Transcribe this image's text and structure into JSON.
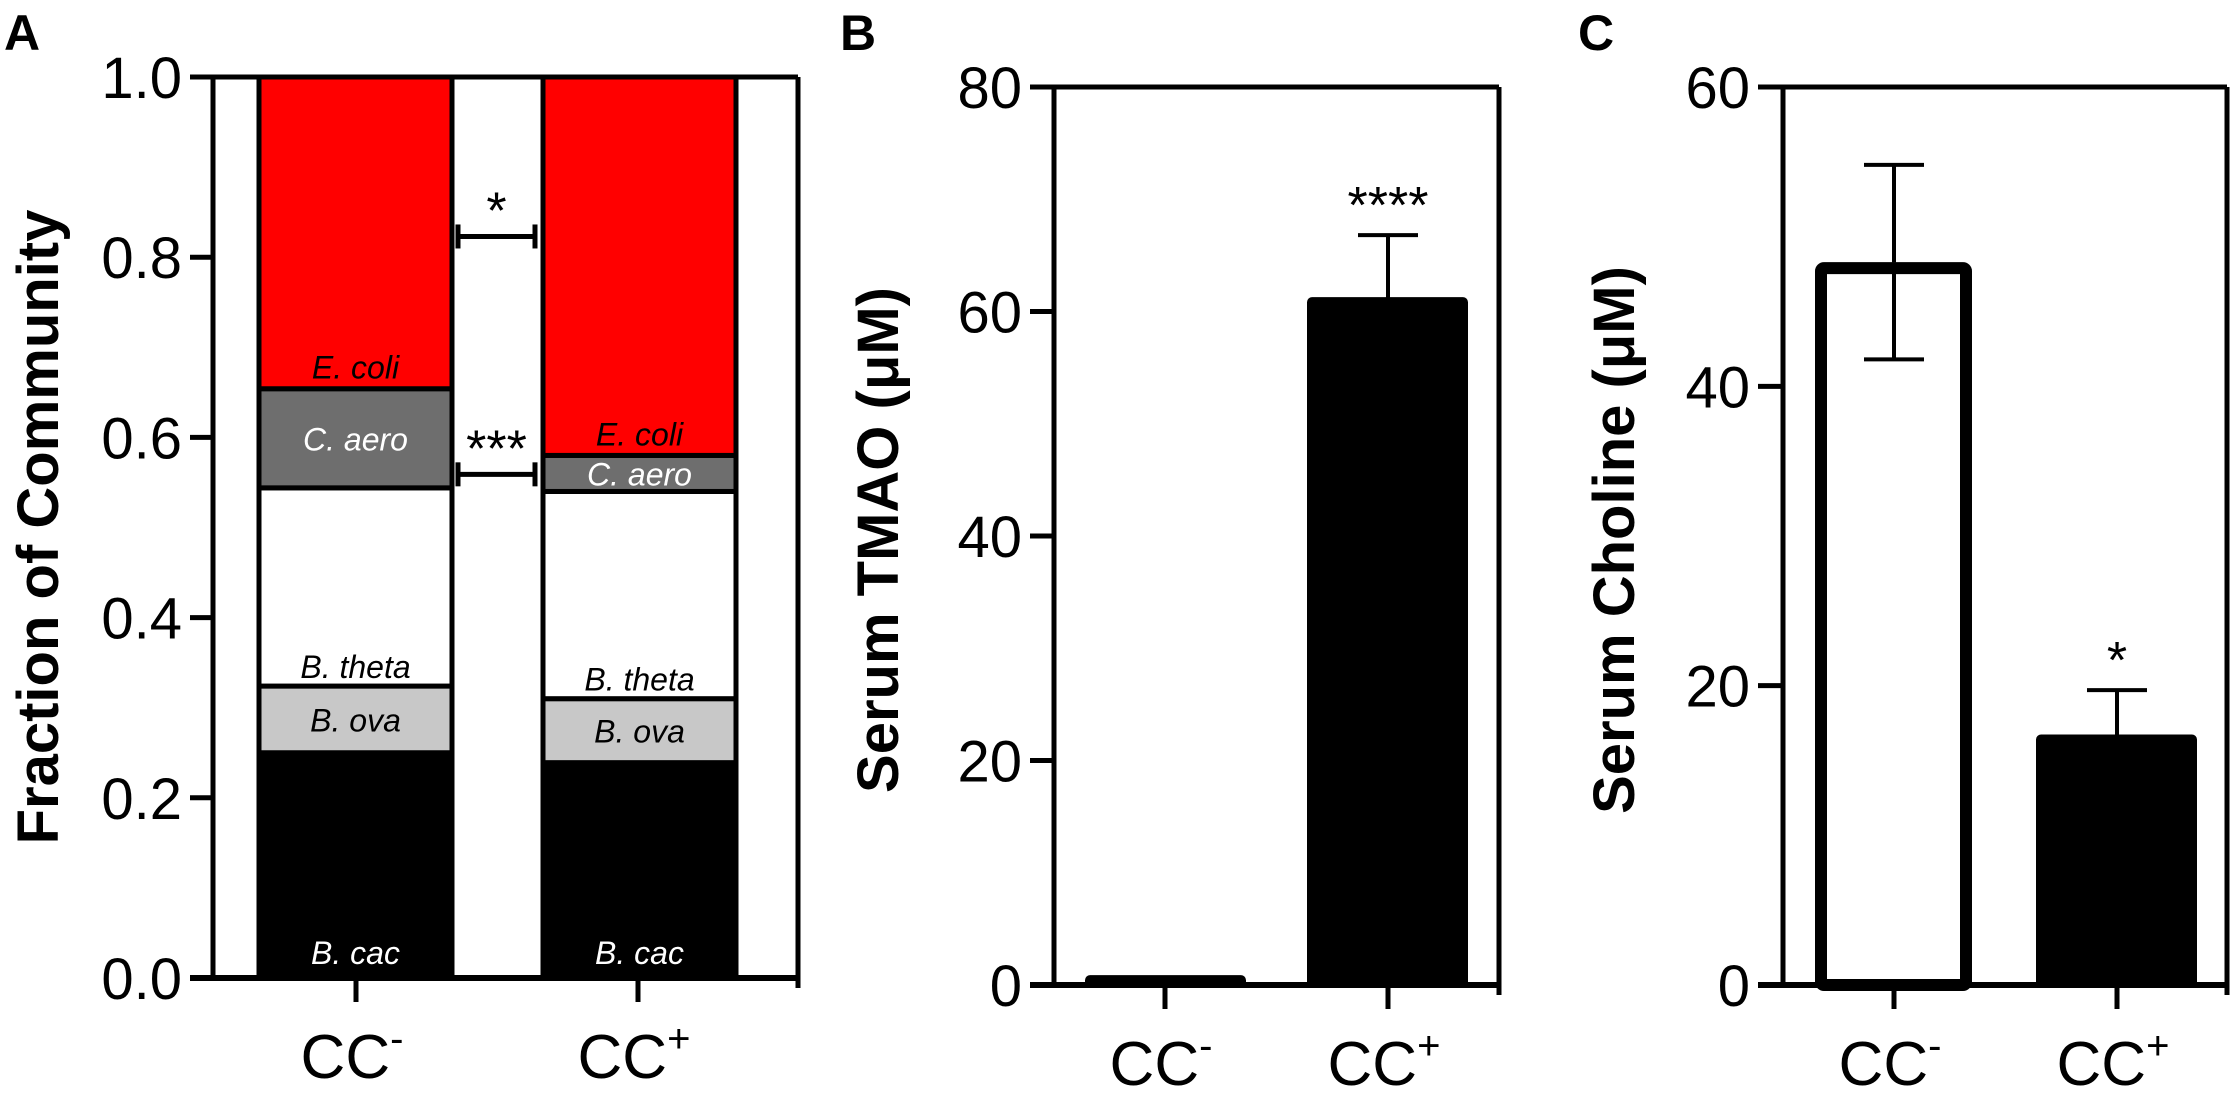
{
  "chart_data": [
    {
      "panel": "A",
      "type": "bar",
      "stacked": true,
      "categories": [
        "CC",
        "CC"
      ],
      "category_superscripts": [
        "-",
        "+"
      ],
      "ylabel": "Fraction of Community",
      "xlabel": "",
      "ylim": [
        0,
        1.0
      ],
      "yticks": [
        "0.0",
        "0.2",
        "0.4",
        "0.6",
        "0.8",
        "1.0"
      ],
      "ytick_values": [
        0,
        0.2,
        0.4,
        0.6,
        0.8,
        1.0
      ],
      "series": [
        {
          "name": "B. cac",
          "color": "#000000",
          "label_color": "#ffffff",
          "values": [
            0.25,
            0.239
          ]
        },
        {
          "name": "B. ova",
          "color": "#c8c8c8",
          "label_color": "#000000",
          "values": [
            0.074,
            0.071
          ]
        },
        {
          "name": "B. theta",
          "color": "#ffffff",
          "label_color": "#000000",
          "values": [
            0.22,
            0.23
          ]
        },
        {
          "name": "C. aero",
          "color": "#6e6e6e",
          "label_color": "#ffffff",
          "values": [
            0.11,
            0.04
          ]
        },
        {
          "name": "E. coli",
          "color": "#ff0000",
          "label_color": "#000000",
          "values": [
            0.346,
            0.42
          ]
        }
      ],
      "annotations": [
        {
          "text": "*",
          "between": "E. coli",
          "level": 0.823
        },
        {
          "text": "***",
          "between": "C. aero",
          "level": 0.559
        }
      ]
    },
    {
      "panel": "B",
      "type": "bar",
      "categories": [
        "CC",
        "CC"
      ],
      "category_superscripts": [
        "-",
        "+"
      ],
      "ylabel": "Serum TMAO (μM)",
      "xlabel": "",
      "ylim": [
        0,
        80
      ],
      "yticks": [
        "0",
        "20",
        "40",
        "60",
        "80"
      ],
      "ytick_values": [
        0,
        20,
        40,
        60,
        80
      ],
      "values": [
        0.7,
        61.1
      ],
      "error_upper": [
        0,
        66.8
      ],
      "error_lower": [
        null,
        null
      ],
      "fill": [
        "#000000",
        "#000000"
      ],
      "annotations": [
        {
          "text": "****",
          "category_index": 1
        }
      ]
    },
    {
      "panel": "C",
      "type": "bar",
      "categories": [
        "CC",
        "CC"
      ],
      "category_superscripts": [
        "-",
        "+"
      ],
      "ylabel": "Serum Choline (μM)",
      "xlabel": "",
      "ylim": [
        0,
        60
      ],
      "yticks": [
        "0",
        "20",
        "40",
        "60"
      ],
      "ytick_values": [
        0,
        20,
        40,
        60
      ],
      "values": [
        48.3,
        16.6
      ],
      "error_upper": [
        54.8,
        19.7
      ],
      "error_lower": [
        41.8,
        null
      ],
      "fill": [
        "#ffffff",
        "#000000"
      ],
      "annotations": [
        {
          "text": "*",
          "category_index": 1
        }
      ]
    }
  ]
}
